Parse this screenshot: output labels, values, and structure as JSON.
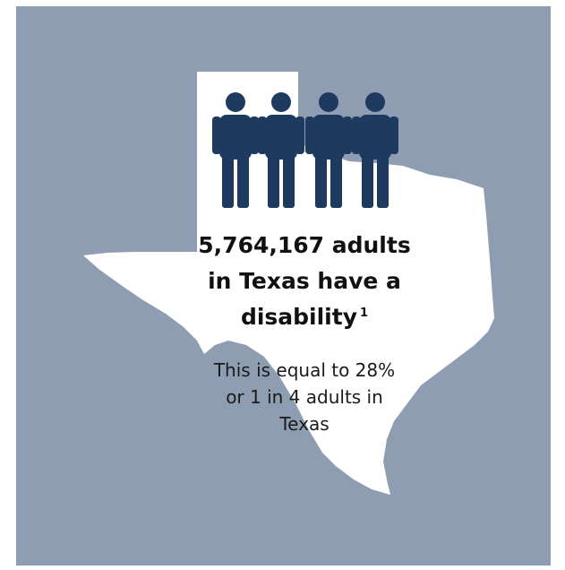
{
  "headline": {
    "line1": "5,764,167 adults",
    "line2": "in Texas have a",
    "line3": "disability",
    "footnote": "1"
  },
  "subtext": {
    "line1": "This is equal to 28%",
    "line2": "or 1 in 4 adults in",
    "line3": "Texas"
  },
  "icons": [
    "person-icon",
    "person-icon",
    "person-icon",
    "person-icon",
    "texas-map-shape"
  ],
  "colors": {
    "panel_background": "#8f9db2",
    "map_fill": "#ffffff",
    "person_icon": "#1e3a5f"
  }
}
